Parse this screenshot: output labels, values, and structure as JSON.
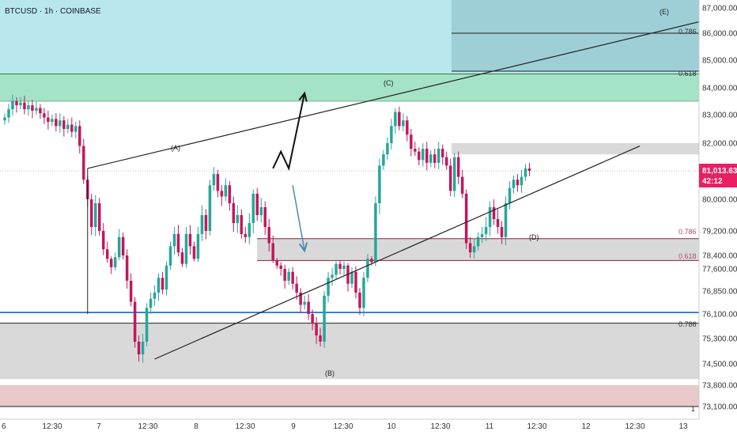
{
  "header": {
    "symbol": "BTCUSD",
    "interval": "1h",
    "exchange": "COINBASE",
    "separator": " · "
  },
  "current_price": {
    "price": "81,013.63",
    "countdown": "42:12",
    "value": 81013.63
  },
  "fib_labels": {
    "upper_0786": "0.786",
    "upper_0618": "0.618",
    "mid_0786": "0.786",
    "mid_0618": "0.618",
    "low_0786": "0.786",
    "bottom_1": "1"
  },
  "wave_labels": {
    "A": "(A)",
    "B": "(B)",
    "C": "(C)",
    "D": "(D)",
    "E": "(E)"
  },
  "colors": {
    "bull": "#26a69a",
    "bear": "#c2185b",
    "up_zone": "#a5e3c8",
    "sky": "#b8e8ee",
    "top_box": "#9ecfd6",
    "gray_zone": "#d9d9d9",
    "pink_zone": "#e8c8c8",
    "price_badge": "#e91e63",
    "blue_line": "#1565c0",
    "arrow_down": "#4a8bb0"
  },
  "chart_data": {
    "type": "candlestick",
    "ylim": [
      73000,
      87000
    ],
    "y_ticks": [
      {
        "value": 87000,
        "label": "87,000.00"
      },
      {
        "value": 86000,
        "label": "86,000.00"
      },
      {
        "value": 85000,
        "label": "85,000.00"
      },
      {
        "value": 84000,
        "label": "84,000.00"
      },
      {
        "value": 83000,
        "label": "83,000.00"
      },
      {
        "value": 82000,
        "label": "82,000.00"
      },
      {
        "value": 80000,
        "label": "80,000.00"
      },
      {
        "value": 79200,
        "label": "79,200.00"
      },
      {
        "value": 78400,
        "label": "78,400.00"
      },
      {
        "value": 77600,
        "label": "77,600.00"
      },
      {
        "value": 76850,
        "label": "76,850.00"
      },
      {
        "value": 76100,
        "label": "76,100.00"
      },
      {
        "value": 75300,
        "label": "75,300.00"
      },
      {
        "value": 74500,
        "label": "74,500.00"
      },
      {
        "value": 73800,
        "label": "73,800.00"
      },
      {
        "value": 73100,
        "label": "73,100.00"
      }
    ],
    "x_ticks": [
      "6",
      "12:30",
      "7",
      "12:30",
      "8",
      "12:30",
      "9",
      "12:30",
      "10",
      "12:30",
      "11",
      "12:30",
      "12",
      "12:30",
      "13"
    ],
    "x_tick_bars": [
      0,
      12,
      24,
      36,
      48,
      60,
      72,
      84,
      96,
      108,
      120,
      132,
      144,
      156,
      168
    ],
    "bars_total": 180,
    "closes": [
      82900,
      83200,
      83500,
      83350,
      83450,
      83200,
      83350,
      83150,
      83250,
      83050,
      82900,
      82750,
      82850,
      82600,
      82800,
      82500,
      82650,
      82400,
      82600,
      81900,
      80700,
      80000,
      79300,
      79900,
      79200,
      78600,
      78200,
      77700,
      78300,
      79000,
      78400,
      77200,
      76500,
      75200,
      74800,
      75200,
      76300,
      76600,
      76800,
      77300,
      76900,
      77800,
      78700,
      79100,
      78500,
      77900,
      79100,
      78700,
      78200,
      79100,
      79600,
      79200,
      80500,
      80900,
      80300,
      80100,
      80500,
      79900,
      79400,
      79600,
      79100,
      79000,
      79400,
      80200,
      79600,
      79800,
      79300,
      78800,
      78100,
      77800,
      77600,
      77200,
      77500,
      77100,
      76800,
      76400,
      76500,
      76100,
      75800,
      75400,
      75200,
      76700,
      77300,
      77400,
      77900,
      77600,
      77800,
      77100,
      77500,
      76800,
      76300,
      77300,
      78200,
      78000,
      79900,
      81200,
      81600,
      82000,
      82600,
      83100,
      82600,
      82800,
      82300,
      81800,
      81700,
      81400,
      81800,
      81300,
      81600,
      81300,
      81800,
      81500,
      81200,
      80300,
      81500,
      80800,
      80200,
      78800,
      78500,
      78700,
      79000,
      79100,
      79300,
      79800,
      79500,
      79300,
      79000,
      79900,
      80400,
      80700,
      80500,
      80800,
      81100,
      81013
    ],
    "annotations": {
      "trendline_upper": [
        [
          21,
          81100
        ],
        [
          180,
          86600
        ]
      ],
      "trendline_lower": [
        [
          38,
          74650
        ],
        [
          161,
          81900
        ]
      ],
      "wave_points": [
        {
          "label": "A",
          "x": 21,
          "y": 81700
        },
        {
          "label": "B",
          "x": 41,
          "y": 74300
        },
        {
          "label": "C",
          "x": 49,
          "y": 84050
        },
        {
          "label": "D",
          "x": 67,
          "y": 78800
        },
        {
          "label": "E",
          "x": 83,
          "y": 86900
        }
      ],
      "arrow_up": [
        [
          68,
          81100
        ],
        [
          70,
          81700
        ],
        [
          72,
          81100
        ],
        [
          76,
          83800
        ]
      ],
      "arrow_down": [
        [
          73,
          80500
        ],
        [
          76,
          78550
        ]
      ]
    }
  }
}
